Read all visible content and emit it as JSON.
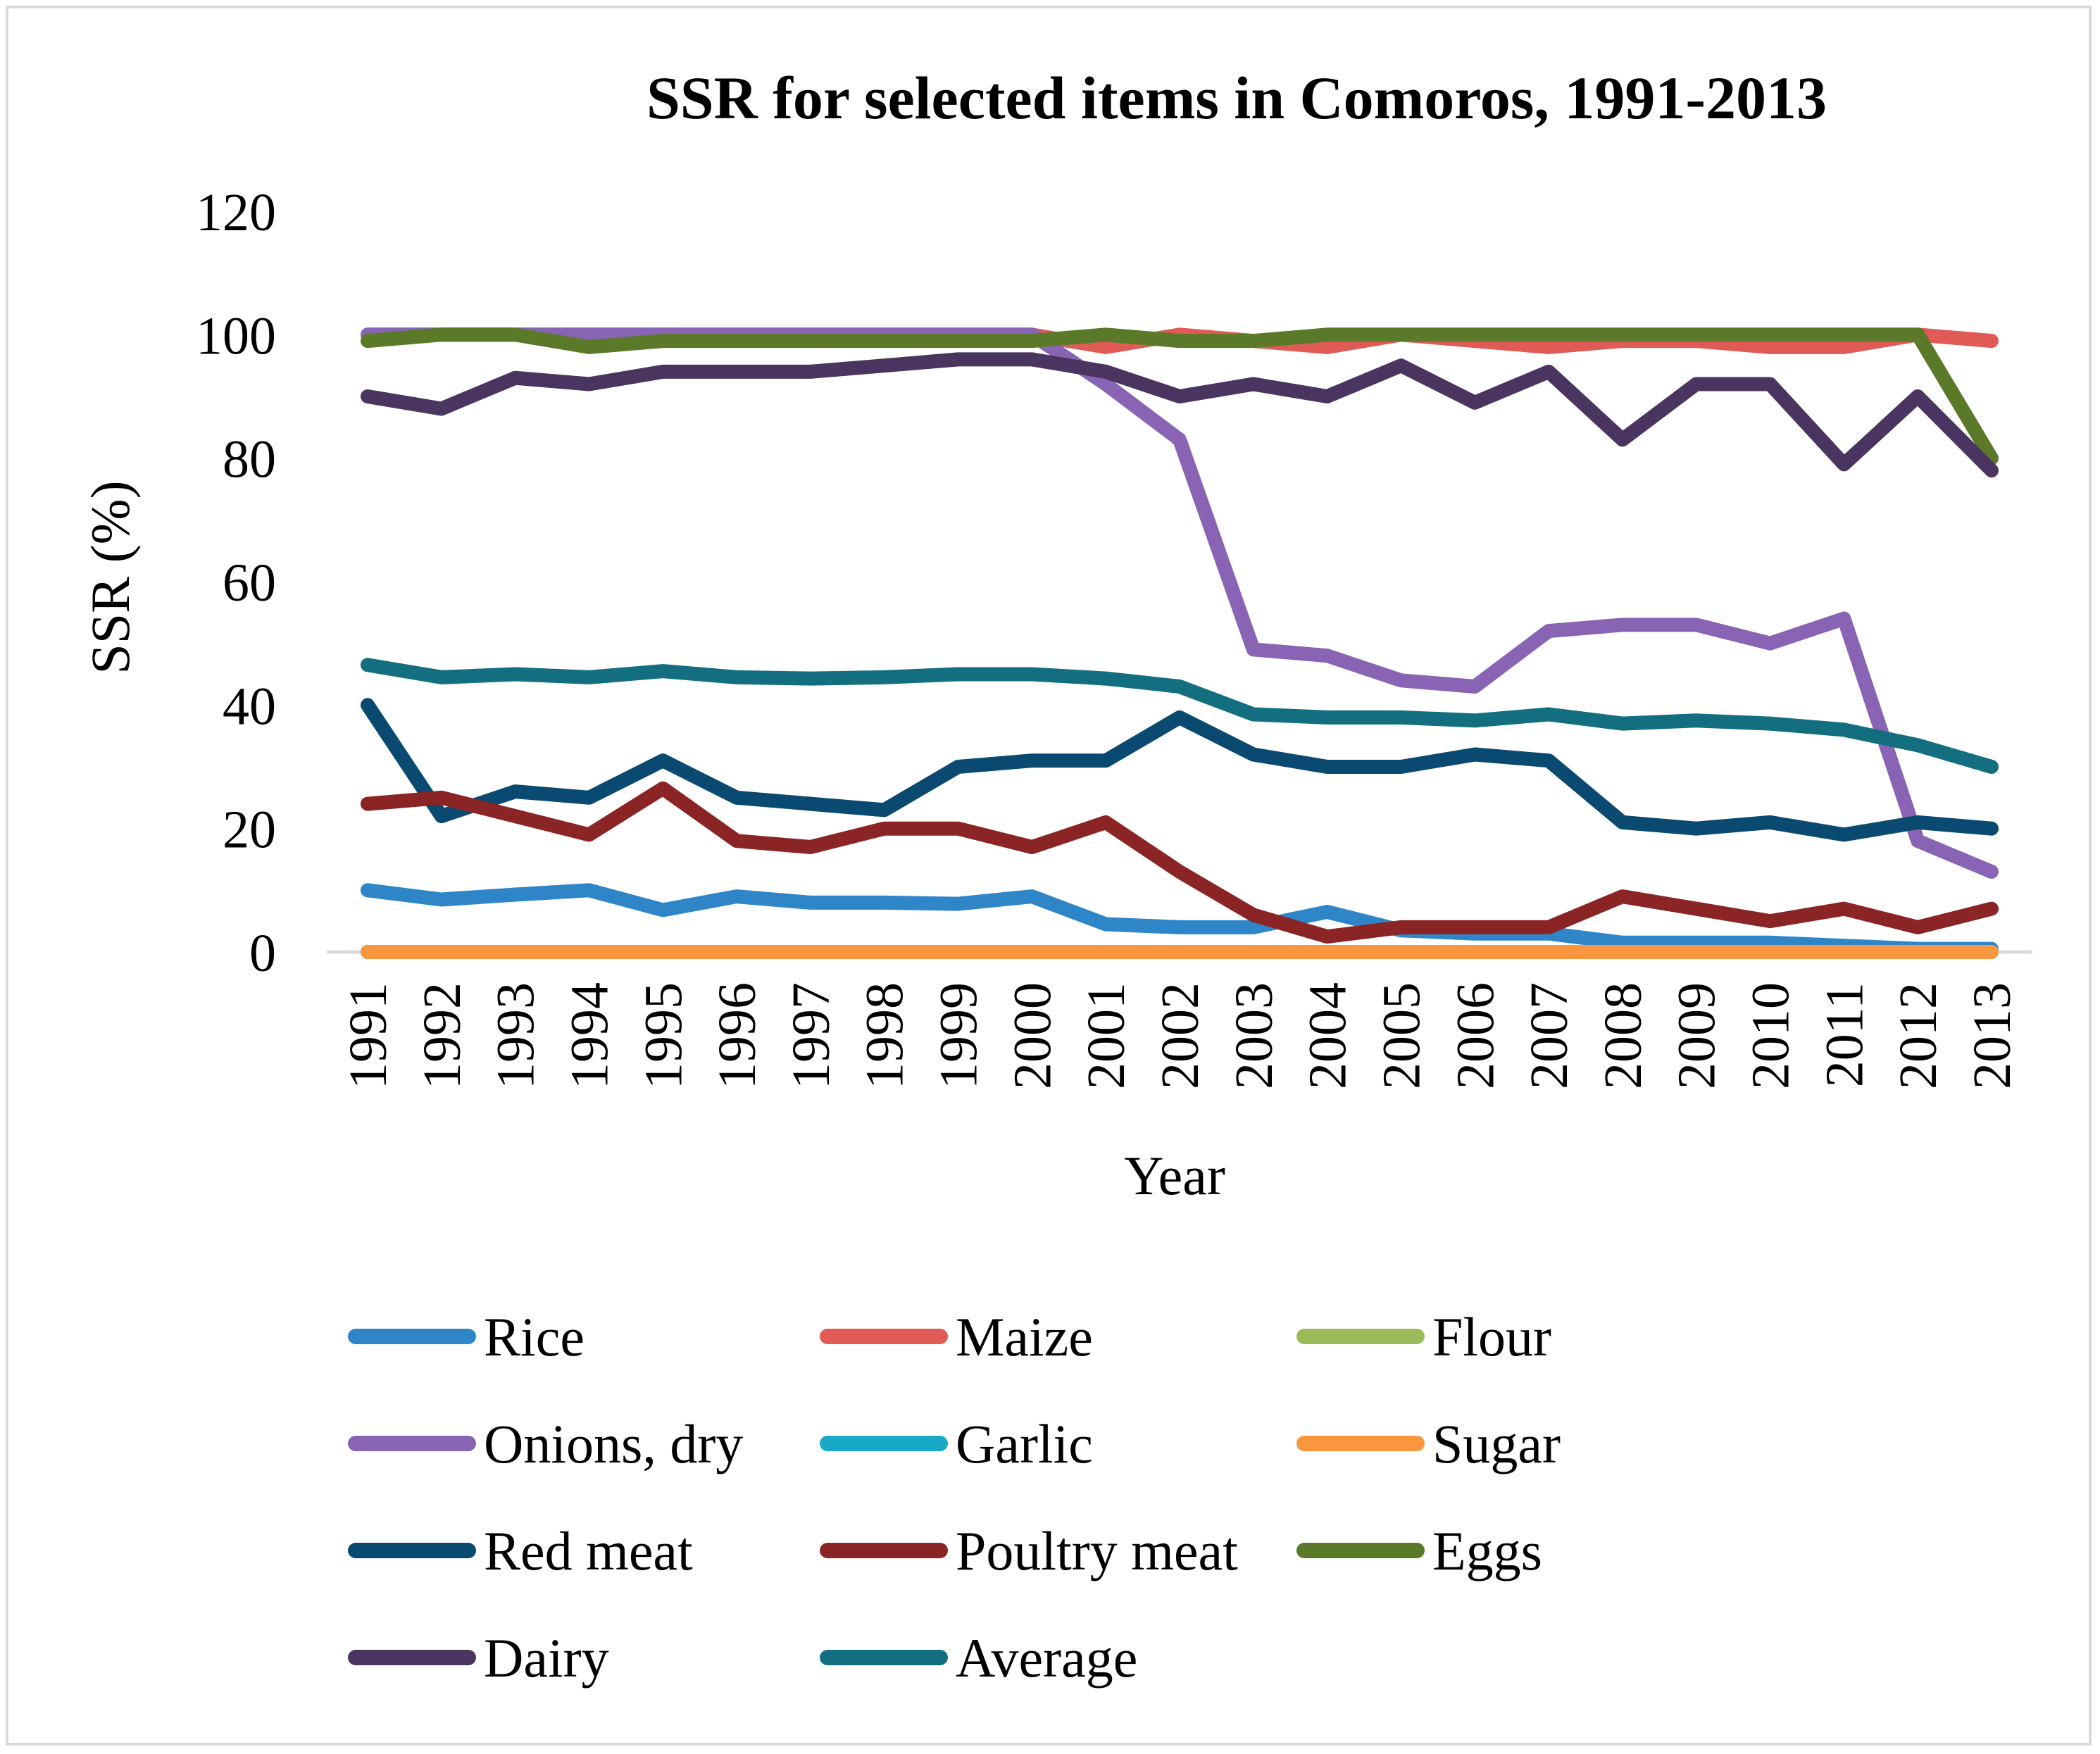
{
  "chart_data": {
    "type": "line",
    "title": "SSR for selected items in Comoros, 1991-2013",
    "xlabel": "Year",
    "ylabel": "SSR (%)",
    "ylim": [
      0,
      120
    ],
    "yticks": [
      "0",
      "20",
      "40",
      "60",
      "80",
      "100",
      "120"
    ],
    "grid": false,
    "legend_position": "bottom",
    "categories": [
      "1991",
      "1992",
      "1993",
      "1994",
      "1995",
      "1996",
      "1997",
      "1998",
      "1999",
      "2000",
      "2001",
      "2002",
      "2003",
      "2004",
      "2005",
      "2006",
      "2007",
      "2008",
      "2009",
      "2010",
      "2011",
      "2012",
      "2013"
    ],
    "series": [
      {
        "name": "Rice",
        "color": "#2e86c8",
        "values": [
          10,
          8.5,
          9.3,
          10,
          6.8,
          9,
          8,
          8,
          7.8,
          9,
          4.5,
          4,
          4,
          6.5,
          3.5,
          3,
          3,
          1.5,
          1.5,
          1.5,
          1,
          0.5,
          0.5
        ]
      },
      {
        "name": "Maize",
        "color": "#e05a56",
        "values": [
          100,
          100,
          100,
          100,
          100,
          100,
          100,
          100,
          100,
          100,
          98,
          100,
          99,
          98,
          100,
          99,
          98,
          99,
          99,
          98,
          98,
          100,
          99
        ]
      },
      {
        "name": "Flour",
        "color": "#9bbb59",
        "values": [
          0,
          0,
          0,
          0,
          0,
          0,
          0,
          0,
          0,
          0,
          0,
          0,
          0,
          0,
          0,
          0,
          0,
          0,
          0,
          0,
          0,
          0,
          0
        ]
      },
      {
        "name": "Onions, dry",
        "color": "#8a64b4",
        "values": [
          100,
          100,
          100,
          100,
          100,
          100,
          100,
          100,
          100,
          100,
          92,
          83,
          49,
          48,
          44,
          43,
          52,
          53,
          53,
          50,
          54,
          18,
          13
        ]
      },
      {
        "name": "Garlic",
        "color": "#17a9c6",
        "values": [
          0,
          0,
          0,
          0,
          0,
          0,
          0,
          0,
          0,
          0,
          0,
          0,
          0,
          0,
          0,
          0,
          0,
          0,
          0,
          0,
          0,
          0,
          0
        ]
      },
      {
        "name": "Sugar",
        "color": "#f9963e",
        "values": [
          0,
          0,
          0,
          0,
          0,
          0,
          0,
          0,
          0,
          0,
          0,
          0,
          0,
          0,
          0,
          0,
          0,
          0,
          0,
          0,
          0,
          0,
          0
        ]
      },
      {
        "name": "Red meat",
        "color": "#0b4a70",
        "values": [
          40,
          22,
          26,
          25,
          31,
          25,
          24,
          23,
          30,
          31,
          31,
          38,
          32,
          30,
          30,
          32,
          31,
          21,
          20,
          21,
          19,
          21,
          20
        ]
      },
      {
        "name": "Poultry meat",
        "color": "#8b2525",
        "values": [
          24,
          25,
          22,
          19,
          26.5,
          18,
          17,
          20,
          20,
          17,
          21,
          13,
          6,
          2.5,
          4,
          4,
          4,
          9,
          7,
          5,
          7,
          4,
          7
        ]
      },
      {
        "name": "Eggs",
        "color": "#5a7a2a",
        "values": [
          99,
          100,
          100,
          98,
          99,
          99,
          99,
          99,
          99,
          99,
          100,
          99,
          99,
          100,
          100,
          100,
          100,
          100,
          100,
          100,
          100,
          100,
          80
        ]
      },
      {
        "name": "Dairy",
        "color": "#4a3560",
        "values": [
          90,
          88,
          93,
          92,
          94,
          94,
          94,
          95,
          96,
          96,
          94,
          90,
          92,
          90,
          95,
          89,
          94,
          83,
          92,
          92,
          79,
          90,
          78
        ]
      },
      {
        "name": "Average",
        "color": "#136f80",
        "values": [
          46.5,
          44.5,
          45,
          44.5,
          45.5,
          44.5,
          44.3,
          44.5,
          45,
          45,
          44.3,
          43,
          38.5,
          38,
          38,
          37.5,
          38.5,
          37,
          37.5,
          37,
          36,
          33.5,
          30
        ]
      }
    ]
  }
}
